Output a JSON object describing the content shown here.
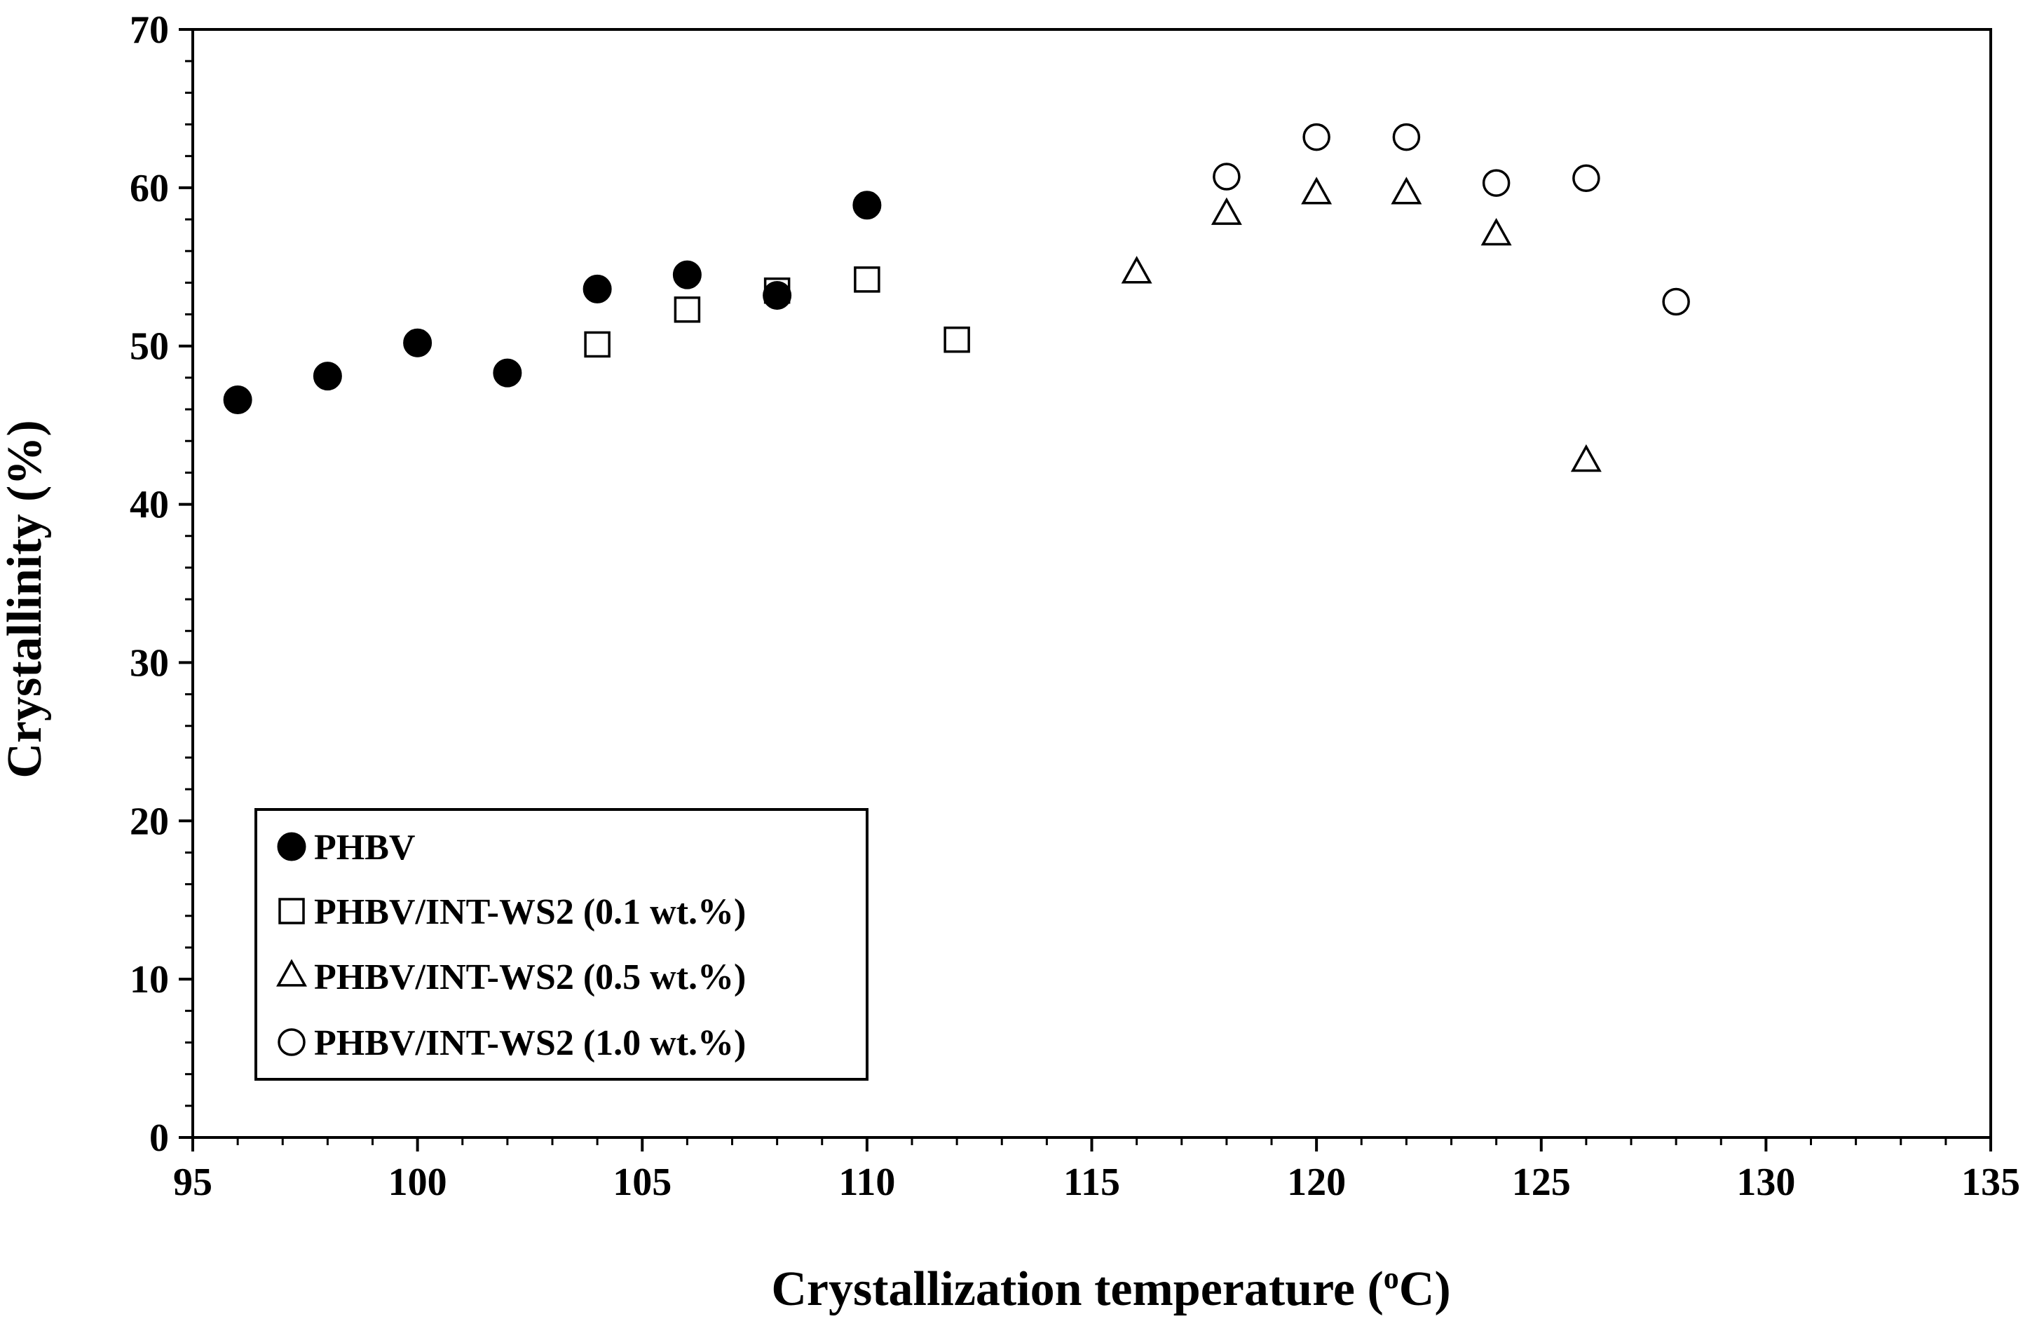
{
  "chart_data": {
    "type": "scatter",
    "title": "",
    "xlabel": "Crystallization temperature (",
    "xlabel_sup": "o",
    "xlabel_suffix": "C)",
    "ylabel": "Crystallinity (%)",
    "xlim": [
      95,
      135
    ],
    "ylim": [
      0,
      70
    ],
    "xticks": [
      95,
      100,
      105,
      110,
      115,
      120,
      125,
      130,
      135
    ],
    "yticks": [
      0,
      10,
      20,
      30,
      40,
      50,
      60,
      70
    ],
    "x_minor_step": 1,
    "y_minor_step": 2,
    "grid": false,
    "legend_position": "bottom-left",
    "series": [
      {
        "name": "PHBV",
        "marker": "circle-filled",
        "x": [
          96,
          98,
          100,
          102,
          104,
          106,
          108,
          110
        ],
        "y": [
          46.6,
          48.1,
          50.2,
          48.3,
          53.6,
          54.5,
          53.2,
          58.9
        ]
      },
      {
        "name": "PHBV/INT-WS2 (0.1 wt.%)",
        "marker": "square-open",
        "x": [
          104,
          106,
          108,
          110,
          112
        ],
        "y": [
          50.1,
          52.3,
          53.5,
          54.2,
          50.4
        ]
      },
      {
        "name": "PHBV/INT-WS2 (0.5 wt.%)",
        "marker": "triangle-open",
        "x": [
          116,
          118,
          120,
          122,
          124,
          126
        ],
        "y": [
          54.6,
          58.3,
          59.6,
          59.6,
          57.0,
          42.7
        ]
      },
      {
        "name": "PHBV/INT-WS2 (1.0 wt.%)",
        "marker": "circle-open",
        "x": [
          118,
          120,
          122,
          124,
          126,
          128
        ],
        "y": [
          60.7,
          63.2,
          63.2,
          60.3,
          60.6,
          52.8
        ]
      }
    ]
  }
}
